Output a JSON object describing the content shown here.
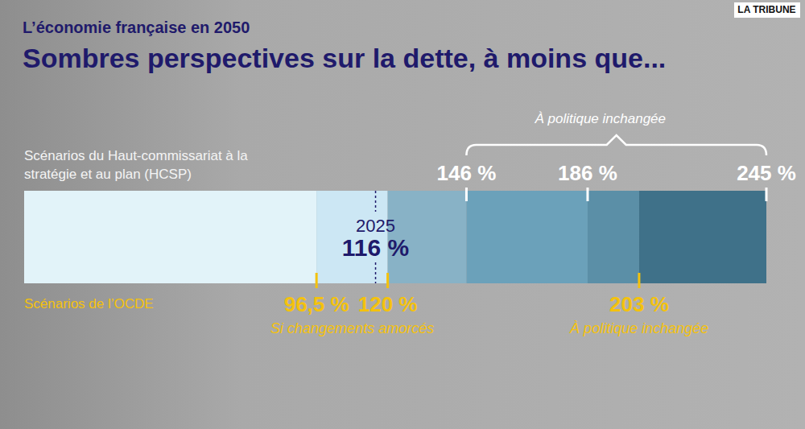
{
  "chart_data": {
    "type": "scale",
    "subtitle": "L’économie française en 2050",
    "title": "Sombres perspectives sur la dette, à moins que...",
    "source": "LA TRIBUNE",
    "xlim": [
      0,
      245
    ],
    "tick_labels": false,
    "data_labels": true,
    "bands": {
      "values": [
        0,
        96.5,
        120,
        146,
        186,
        203
      ],
      "colors": [
        "#e2f3f9",
        "#cce7f4",
        "#88b2c6",
        "#6ba1ba",
        "#5b8fa7",
        "#3f7189"
      ]
    },
    "reference": {
      "label": "2025",
      "value": 116,
      "value_label": "116 %",
      "color": "#1f1a6b"
    },
    "series": [
      {
        "name": "Scénarios du Haut-commissariat à la stratégie et au plan (HCSP)",
        "color": "#ffffff",
        "values": [
          146,
          186,
          245
        ],
        "value_labels": [
          "146 %",
          "186 %",
          "245 %"
        ],
        "groups": [
          {
            "label": "À politique inchangée",
            "from": 146,
            "to": 245
          }
        ]
      },
      {
        "name": "Scénarios de l’OCDE",
        "color": "#f4c20d",
        "values": [
          96.5,
          120,
          203
        ],
        "value_labels": [
          "96,5 %",
          "120 %",
          "203 %"
        ],
        "groups": [
          {
            "label": "Si changements amorcés",
            "from": 96.5,
            "to": 120
          },
          {
            "label": "À politique inchangée",
            "from": 203,
            "to": 203
          }
        ]
      }
    ]
  }
}
